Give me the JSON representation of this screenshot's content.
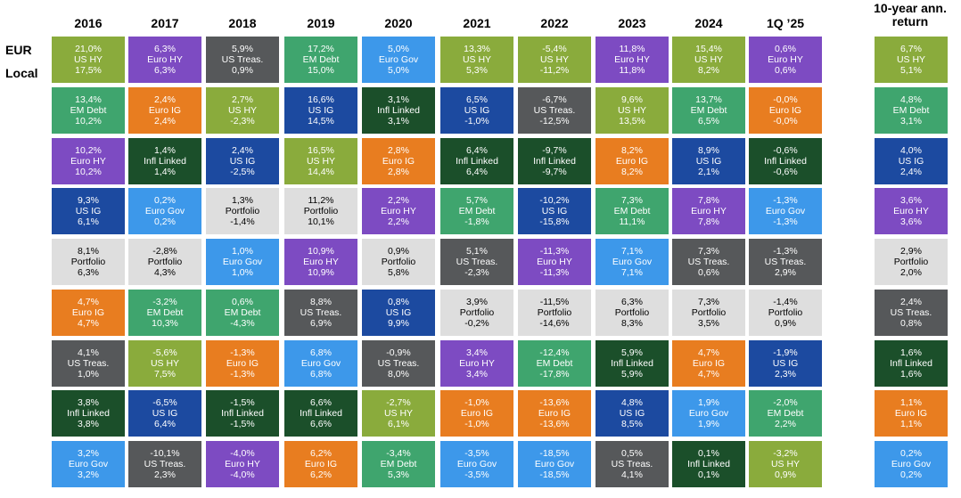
{
  "row_labels": [
    "EUR",
    "Local"
  ],
  "ann_header": "10-year ann. return",
  "years": [
    "2016",
    "2017",
    "2018",
    "2019",
    "2020",
    "2021",
    "2022",
    "2023",
    "2024",
    "1Q ’25"
  ],
  "assets": {
    "US HY": {
      "bg": "#8aab3c",
      "fg": "#ffffff"
    },
    "Euro HY": {
      "bg": "#7d4bc2",
      "fg": "#ffffff"
    },
    "US Treas.": {
      "bg": "#56585a",
      "fg": "#ffffff"
    },
    "EM Debt": {
      "bg": "#3fa56e",
      "fg": "#ffffff"
    },
    "Euro Gov": {
      "bg": "#3d98ea",
      "fg": "#ffffff"
    },
    "Euro IG": {
      "bg": "#e87d20",
      "fg": "#ffffff"
    },
    "US IG": {
      "bg": "#1c4aa0",
      "fg": "#ffffff"
    },
    "Infl Linked": {
      "bg": "#1b4f2a",
      "fg": "#ffffff"
    },
    "Portfolio": {
      "bg": "#dedede",
      "fg": "#000000"
    }
  },
  "chart_data": {
    "type": "table",
    "columns": [
      [
        {
          "eur": "21,0%",
          "asset": "US HY",
          "local": "17,5%"
        },
        {
          "eur": "13,4%",
          "asset": "EM Debt",
          "local": "10,2%"
        },
        {
          "eur": "10,2%",
          "asset": "Euro HY",
          "local": "10,2%"
        },
        {
          "eur": "9,3%",
          "asset": "US IG",
          "local": "6,1%"
        },
        {
          "eur": "8,1%",
          "asset": "Portfolio",
          "local": "6,3%"
        },
        {
          "eur": "4,7%",
          "asset": "Euro IG",
          "local": "4,7%"
        },
        {
          "eur": "4,1%",
          "asset": "US Treas.",
          "local": "1,0%"
        },
        {
          "eur": "3,8%",
          "asset": "Infl Linked",
          "local": "3,8%"
        },
        {
          "eur": "3,2%",
          "asset": "Euro Gov",
          "local": "3,2%"
        }
      ],
      [
        {
          "eur": "6,3%",
          "asset": "Euro HY",
          "local": "6,3%"
        },
        {
          "eur": "2,4%",
          "asset": "Euro IG",
          "local": "2,4%"
        },
        {
          "eur": "1,4%",
          "asset": "Infl Linked",
          "local": "1,4%"
        },
        {
          "eur": "0,2%",
          "asset": "Euro Gov",
          "local": "0,2%"
        },
        {
          "eur": "-2,8%",
          "asset": "Portfolio",
          "local": "4,3%"
        },
        {
          "eur": "-3,2%",
          "asset": "EM Debt",
          "local": "10,3%"
        },
        {
          "eur": "-5,6%",
          "asset": "US HY",
          "local": "7,5%"
        },
        {
          "eur": "-6,5%",
          "asset": "US IG",
          "local": "6,4%"
        },
        {
          "eur": "-10,1%",
          "asset": "US Treas.",
          "local": "2,3%"
        }
      ],
      [
        {
          "eur": "5,9%",
          "asset": "US Treas.",
          "local": "0,9%"
        },
        {
          "eur": "2,7%",
          "asset": "US HY",
          "local": "-2,3%"
        },
        {
          "eur": "2,4%",
          "asset": "US IG",
          "local": "-2,5%"
        },
        {
          "eur": "1,3%",
          "asset": "Portfolio",
          "local": "-1,4%"
        },
        {
          "eur": "1,0%",
          "asset": "Euro Gov",
          "local": "1,0%"
        },
        {
          "eur": "0,6%",
          "asset": "EM Debt",
          "local": "-4,3%"
        },
        {
          "eur": "-1,3%",
          "asset": "Euro IG",
          "local": "-1,3%"
        },
        {
          "eur": "-1,5%",
          "asset": "Infl Linked",
          "local": "-1,5%"
        },
        {
          "eur": "-4,0%",
          "asset": "Euro HY",
          "local": "-4,0%"
        }
      ],
      [
        {
          "eur": "17,2%",
          "asset": "EM Debt",
          "local": "15,0%"
        },
        {
          "eur": "16,6%",
          "asset": "US IG",
          "local": "14,5%"
        },
        {
          "eur": "16,5%",
          "asset": "US HY",
          "local": "14,4%"
        },
        {
          "eur": "11,2%",
          "asset": "Portfolio",
          "local": "10,1%"
        },
        {
          "eur": "10,9%",
          "asset": "Euro HY",
          "local": "10,9%"
        },
        {
          "eur": "8,8%",
          "asset": "US Treas.",
          "local": "6,9%"
        },
        {
          "eur": "6,8%",
          "asset": "Euro Gov",
          "local": "6,8%"
        },
        {
          "eur": "6,6%",
          "asset": "Infl Linked",
          "local": "6,6%"
        },
        {
          "eur": "6,2%",
          "asset": "Euro IG",
          "local": "6,2%"
        }
      ],
      [
        {
          "eur": "5,0%",
          "asset": "Euro Gov",
          "local": "5,0%"
        },
        {
          "eur": "3,1%",
          "asset": "Infl Linked",
          "local": "3,1%"
        },
        {
          "eur": "2,8%",
          "asset": "Euro IG",
          "local": "2,8%"
        },
        {
          "eur": "2,2%",
          "asset": "Euro HY",
          "local": "2,2%"
        },
        {
          "eur": "0,9%",
          "asset": "Portfolio",
          "local": "5,8%"
        },
        {
          "eur": "0,8%",
          "asset": "US IG",
          "local": "9,9%"
        },
        {
          "eur": "-0,9%",
          "asset": "US Treas.",
          "local": "8,0%"
        },
        {
          "eur": "-2,7%",
          "asset": "US HY",
          "local": "6,1%"
        },
        {
          "eur": "-3,4%",
          "asset": "EM Debt",
          "local": "5,3%"
        }
      ],
      [
        {
          "eur": "13,3%",
          "asset": "US HY",
          "local": "5,3%"
        },
        {
          "eur": "6,5%",
          "asset": "US IG",
          "local": "-1,0%"
        },
        {
          "eur": "6,4%",
          "asset": "Infl Linked",
          "local": "6,4%"
        },
        {
          "eur": "5,7%",
          "asset": "EM Debt",
          "local": "-1,8%"
        },
        {
          "eur": "5,1%",
          "asset": "US Treas.",
          "local": "-2,3%"
        },
        {
          "eur": "3,9%",
          "asset": "Portfolio",
          "local": "-0,2%"
        },
        {
          "eur": "3,4%",
          "asset": "Euro HY",
          "local": "3,4%"
        },
        {
          "eur": "-1,0%",
          "asset": "Euro IG",
          "local": "-1,0%"
        },
        {
          "eur": "-3,5%",
          "asset": "Euro Gov",
          "local": "-3,5%"
        }
      ],
      [
        {
          "eur": "-5,4%",
          "asset": "US HY",
          "local": "-11,2%"
        },
        {
          "eur": "-6,7%",
          "asset": "US Treas.",
          "local": "-12,5%"
        },
        {
          "eur": "-9,7%",
          "asset": "Infl Linked",
          "local": "-9,7%"
        },
        {
          "eur": "-10,2%",
          "asset": "US IG",
          "local": "-15,8%"
        },
        {
          "eur": "-11,3%",
          "asset": "Euro HY",
          "local": "-11,3%"
        },
        {
          "eur": "-11,5%",
          "asset": "Portfolio",
          "local": "-14,6%"
        },
        {
          "eur": "-12,4%",
          "asset": "EM Debt",
          "local": "-17,8%"
        },
        {
          "eur": "-13,6%",
          "asset": "Euro IG",
          "local": "-13,6%"
        },
        {
          "eur": "-18,5%",
          "asset": "Euro Gov",
          "local": "-18,5%"
        }
      ],
      [
        {
          "eur": "11,8%",
          "asset": "Euro HY",
          "local": "11,8%"
        },
        {
          "eur": "9,6%",
          "asset": "US HY",
          "local": "13,5%"
        },
        {
          "eur": "8,2%",
          "asset": "Euro IG",
          "local": "8,2%"
        },
        {
          "eur": "7,3%",
          "asset": "EM Debt",
          "local": "11,1%"
        },
        {
          "eur": "7,1%",
          "asset": "Euro Gov",
          "local": "7,1%"
        },
        {
          "eur": "6,3%",
          "asset": "Portfolio",
          "local": "8,3%"
        },
        {
          "eur": "5,9%",
          "asset": "Infl Linked",
          "local": "5,9%"
        },
        {
          "eur": "4,8%",
          "asset": "US IG",
          "local": "8,5%"
        },
        {
          "eur": "0,5%",
          "asset": "US Treas.",
          "local": "4,1%"
        }
      ],
      [
        {
          "eur": "15,4%",
          "asset": "US HY",
          "local": "8,2%"
        },
        {
          "eur": "13,7%",
          "asset": "EM Debt",
          "local": "6,5%"
        },
        {
          "eur": "8,9%",
          "asset": "US IG",
          "local": "2,1%"
        },
        {
          "eur": "7,8%",
          "asset": "Euro HY",
          "local": "7,8%"
        },
        {
          "eur": "7,3%",
          "asset": "US Treas.",
          "local": "0,6%"
        },
        {
          "eur": "7,3%",
          "asset": "Portfolio",
          "local": "3,5%"
        },
        {
          "eur": "4,7%",
          "asset": "Euro IG",
          "local": "4,7%"
        },
        {
          "eur": "1,9%",
          "asset": "Euro Gov",
          "local": "1,9%"
        },
        {
          "eur": "0,1%",
          "asset": "Infl Linked",
          "local": "0,1%"
        }
      ],
      [
        {
          "eur": "0,6%",
          "asset": "Euro HY",
          "local": "0,6%"
        },
        {
          "eur": "-0,0%",
          "asset": "Euro IG",
          "local": "-0,0%"
        },
        {
          "eur": "-0,6%",
          "asset": "Infl Linked",
          "local": "-0,6%"
        },
        {
          "eur": "-1,3%",
          "asset": "Euro Gov",
          "local": "-1,3%"
        },
        {
          "eur": "-1,3%",
          "asset": "US Treas.",
          "local": "2,9%"
        },
        {
          "eur": "-1,4%",
          "asset": "Portfolio",
          "local": "0,9%"
        },
        {
          "eur": "-1,9%",
          "asset": "US IG",
          "local": "2,3%"
        },
        {
          "eur": "-2,0%",
          "asset": "EM Debt",
          "local": "2,2%"
        },
        {
          "eur": "-3,2%",
          "asset": "US HY",
          "local": "0,9%"
        }
      ]
    ],
    "ann_column": [
      {
        "eur": "6,7%",
        "asset": "US HY",
        "local": "5,1%"
      },
      {
        "eur": "4,8%",
        "asset": "EM Debt",
        "local": "3,1%"
      },
      {
        "eur": "4,0%",
        "asset": "US IG",
        "local": "2,4%"
      },
      {
        "eur": "3,6%",
        "asset": "Euro HY",
        "local": "3,6%"
      },
      {
        "eur": "2,9%",
        "asset": "Portfolio",
        "local": "2,0%"
      },
      {
        "eur": "2,4%",
        "asset": "US Treas.",
        "local": "0,8%"
      },
      {
        "eur": "1,6%",
        "asset": "Infl Linked",
        "local": "1,6%"
      },
      {
        "eur": "1,1%",
        "asset": "Euro IG",
        "local": "1,1%"
      },
      {
        "eur": "0,2%",
        "asset": "Euro Gov",
        "local": "0,2%"
      }
    ]
  }
}
